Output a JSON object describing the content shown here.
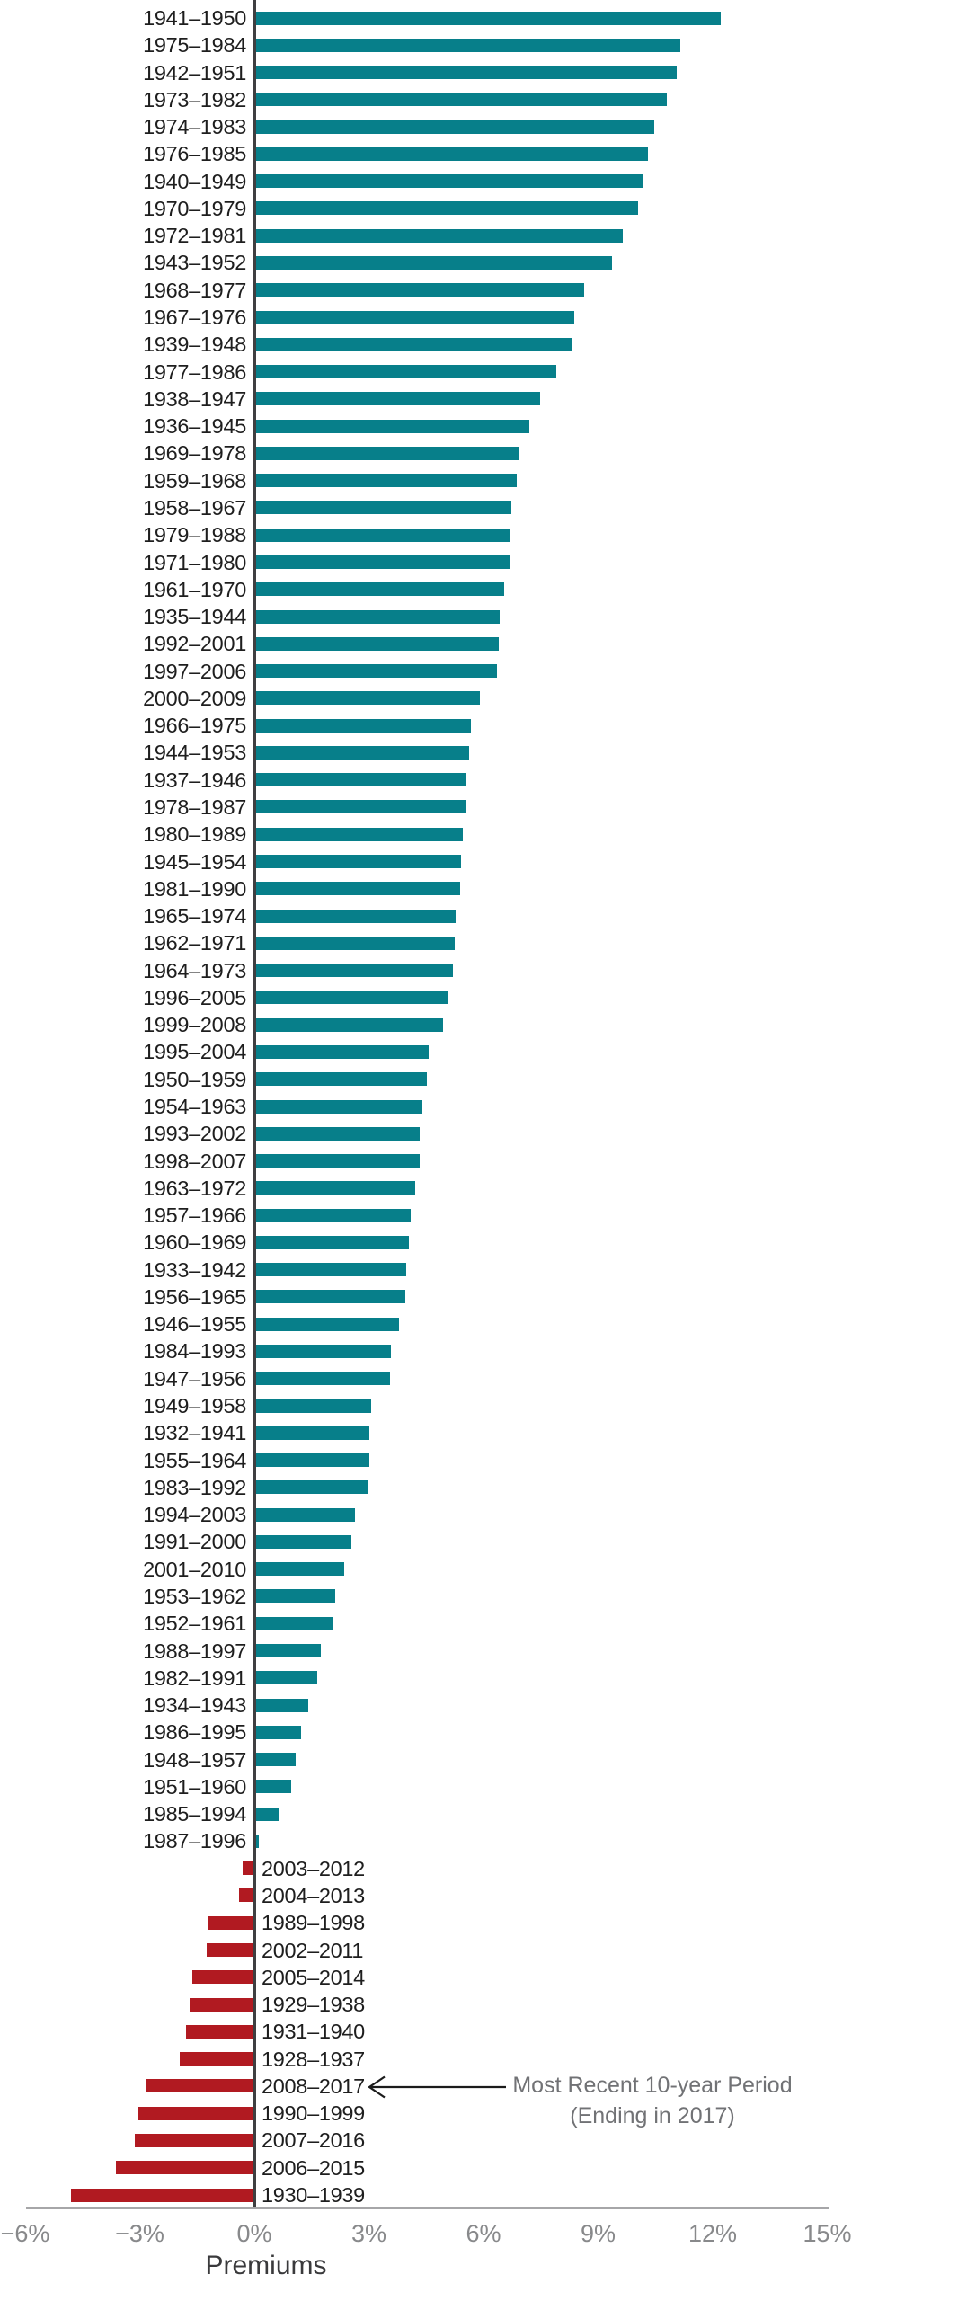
{
  "chart_data": {
    "type": "bar",
    "orientation": "horizontal",
    "title": "",
    "xlabel": "Premiums",
    "unit": "%",
    "xlim": [
      -6,
      15
    ],
    "grid": false,
    "legend": false,
    "x_ticks": [
      "−6%",
      "−3%",
      "0%",
      "3%",
      "6%",
      "9%",
      "12%",
      "15%"
    ],
    "x_tick_values": [
      -6,
      -3,
      0,
      3,
      6,
      9,
      12,
      15
    ],
    "positive_color": "#077F8A",
    "negative_color": "#B11A21",
    "zero_line_color": "#3f3f41",
    "axis_line_color": "#a6a6a8",
    "annotation": {
      "line1": "Most Recent 10-year Period",
      "line2": "(Ending in 2017)",
      "target_label": "2008–2017"
    },
    "series": [
      {
        "label": "1941–1950",
        "value": 12.2
      },
      {
        "label": "1975–1984",
        "value": 11.15
      },
      {
        "label": "1942–1951",
        "value": 11.06
      },
      {
        "label": "1973–1982",
        "value": 10.8
      },
      {
        "label": "1974–1983",
        "value": 10.47
      },
      {
        "label": "1976–1985",
        "value": 10.31
      },
      {
        "label": "1940–1949",
        "value": 10.16
      },
      {
        "label": "1970–1979",
        "value": 10.05
      },
      {
        "label": "1972–1981",
        "value": 9.65
      },
      {
        "label": "1943–1952",
        "value": 9.37
      },
      {
        "label": "1968–1977",
        "value": 8.64
      },
      {
        "label": "1967–1976",
        "value": 8.38
      },
      {
        "label": "1939–1948",
        "value": 8.33
      },
      {
        "label": "1977–1986",
        "value": 7.91
      },
      {
        "label": "1938–1947",
        "value": 7.49
      },
      {
        "label": "1936–1945",
        "value": 7.2
      },
      {
        "label": "1969–1978",
        "value": 6.92
      },
      {
        "label": "1959–1968",
        "value": 6.88
      },
      {
        "label": "1958–1967",
        "value": 6.72
      },
      {
        "label": "1979–1988",
        "value": 6.69
      },
      {
        "label": "1971–1980",
        "value": 6.68
      },
      {
        "label": "1961–1970",
        "value": 6.55
      },
      {
        "label": "1935–1944",
        "value": 6.43
      },
      {
        "label": "1992–2001",
        "value": 6.41
      },
      {
        "label": "1997–2006",
        "value": 6.35
      },
      {
        "label": "2000–2009",
        "value": 5.91
      },
      {
        "label": "1966–1975",
        "value": 5.66
      },
      {
        "label": "1944–1953",
        "value": 5.63
      },
      {
        "label": "1937–1946",
        "value": 5.56
      },
      {
        "label": "1978–1987",
        "value": 5.55
      },
      {
        "label": "1980–1989",
        "value": 5.47
      },
      {
        "label": "1945–1954",
        "value": 5.42
      },
      {
        "label": "1981–1990",
        "value": 5.38
      },
      {
        "label": "1965–1974",
        "value": 5.26
      },
      {
        "label": "1962–1971",
        "value": 5.24
      },
      {
        "label": "1964–1973",
        "value": 5.19
      },
      {
        "label": "1996–2005",
        "value": 5.05
      },
      {
        "label": "1999–2008",
        "value": 4.95
      },
      {
        "label": "1995–2004",
        "value": 4.56
      },
      {
        "label": "1950–1959",
        "value": 4.52
      },
      {
        "label": "1954–1963",
        "value": 4.41
      },
      {
        "label": "1993–2002",
        "value": 4.33
      },
      {
        "label": "1998–2007",
        "value": 4.32
      },
      {
        "label": "1963–1972",
        "value": 4.2
      },
      {
        "label": "1957–1966",
        "value": 4.1
      },
      {
        "label": "1960–1969",
        "value": 4.05
      },
      {
        "label": "1933–1942",
        "value": 3.98
      },
      {
        "label": "1956–1965",
        "value": 3.96
      },
      {
        "label": "1946–1955",
        "value": 3.78
      },
      {
        "label": "1984–1993",
        "value": 3.58
      },
      {
        "label": "1947–1956",
        "value": 3.55
      },
      {
        "label": "1949–1958",
        "value": 3.07
      },
      {
        "label": "1932–1941",
        "value": 3.01
      },
      {
        "label": "1955–1964",
        "value": 3.0
      },
      {
        "label": "1983–1992",
        "value": 2.96
      },
      {
        "label": "1994–2003",
        "value": 2.63
      },
      {
        "label": "1991–2000",
        "value": 2.55
      },
      {
        "label": "2001–2010",
        "value": 2.35
      },
      {
        "label": "1953–1962",
        "value": 2.12
      },
      {
        "label": "1952–1961",
        "value": 2.07
      },
      {
        "label": "1988–1997",
        "value": 1.75
      },
      {
        "label": "1982–1991",
        "value": 1.65
      },
      {
        "label": "1934–1943",
        "value": 1.41
      },
      {
        "label": "1986–1995",
        "value": 1.22
      },
      {
        "label": "1948–1957",
        "value": 1.08
      },
      {
        "label": "1951–1960",
        "value": 0.96
      },
      {
        "label": "1985–1994",
        "value": 0.66
      },
      {
        "label": "1987–1996",
        "value": 0.12
      },
      {
        "label": "2003–2012",
        "value": -0.3
      },
      {
        "label": "2004–2013",
        "value": -0.4
      },
      {
        "label": "1989–1998",
        "value": -1.2
      },
      {
        "label": "2002–2011",
        "value": -1.25
      },
      {
        "label": "2005–2014",
        "value": -1.63
      },
      {
        "label": "1929–1938",
        "value": -1.7
      },
      {
        "label": "1931–1940",
        "value": -1.8
      },
      {
        "label": "1928–1937",
        "value": -1.96
      },
      {
        "label": "2008–2017",
        "value": -2.85
      },
      {
        "label": "1990–1999",
        "value": -3.04
      },
      {
        "label": "2007–2016",
        "value": -3.14
      },
      {
        "label": "2006–2015",
        "value": -3.63
      },
      {
        "label": "1930–1939",
        "value": -4.8
      }
    ]
  }
}
